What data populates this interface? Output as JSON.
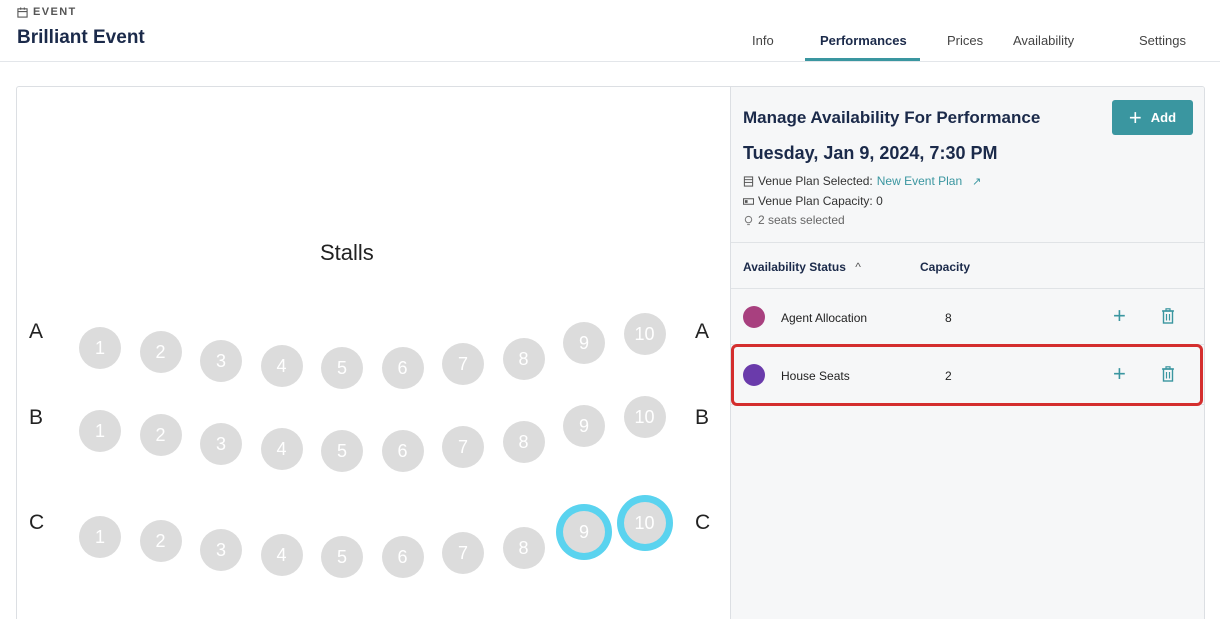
{
  "header": {
    "section_label": "EVENT",
    "title": "Brilliant Event"
  },
  "tabs": [
    {
      "label": "Info",
      "active": false
    },
    {
      "label": "Performances",
      "active": true
    },
    {
      "label": "Prices",
      "active": false
    },
    {
      "label": "Availability",
      "active": false
    },
    {
      "label": "Settings",
      "active": false
    }
  ],
  "seatmap": {
    "section": "Stalls",
    "rows": [
      {
        "label": "A",
        "seats": [
          "1",
          "2",
          "3",
          "4",
          "5",
          "6",
          "7",
          "8",
          "9",
          "10"
        ],
        "selected": []
      },
      {
        "label": "B",
        "seats": [
          "1",
          "2",
          "3",
          "4",
          "5",
          "6",
          "7",
          "8",
          "9",
          "10"
        ],
        "selected": []
      },
      {
        "label": "C",
        "seats": [
          "1",
          "2",
          "3",
          "4",
          "5",
          "6",
          "7",
          "8",
          "9",
          "10"
        ],
        "selected": [
          "9",
          "10"
        ]
      }
    ]
  },
  "side": {
    "title": "Manage Availability For Performance",
    "add_label": "Add",
    "date": "Tuesday, Jan 9, 2024,  7:30 PM",
    "venue_plan_label": "Venue Plan Selected:",
    "venue_plan_value": "New Event Plan",
    "capacity_text": "Venue Plan Capacity: 0",
    "seats_selected": "2 seats selected",
    "columns": {
      "status": "Availability Status",
      "capacity": "Capacity",
      "sort_indicator": "^"
    },
    "allocations": [
      {
        "name": "Agent Allocation",
        "capacity": "8",
        "color": "#a8407f"
      },
      {
        "name": "House Seats",
        "capacity": "2",
        "color": "#6a3bab"
      }
    ]
  },
  "colors": {
    "accent": "#3a96a0",
    "selected_seat_ring": "#5ad3ef",
    "highlight": "#d42e2e"
  }
}
